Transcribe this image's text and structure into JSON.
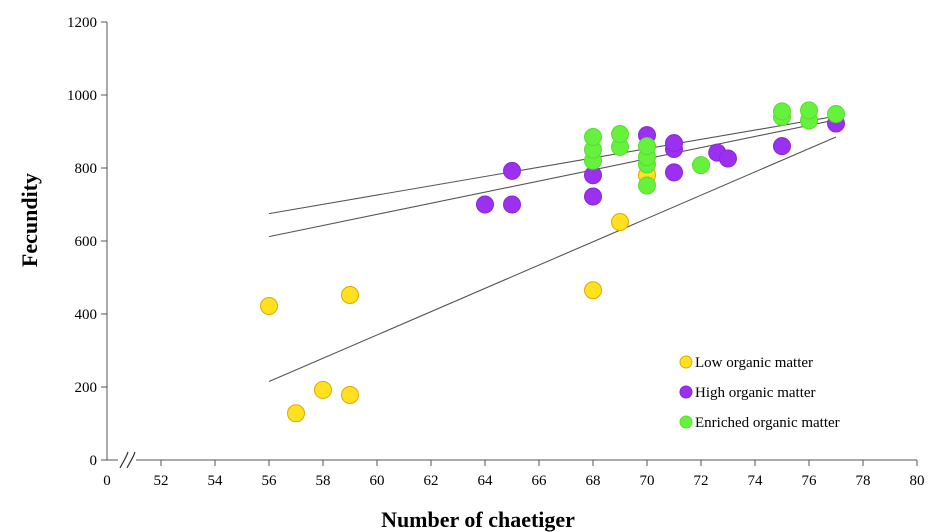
{
  "chart_data": {
    "type": "scatter",
    "xlabel": "Number of chaetiger",
    "ylabel": "Fecundity",
    "x_ticks": [
      "0",
      "52",
      "54",
      "56",
      "58",
      "60",
      "62",
      "64",
      "66",
      "68",
      "70",
      "72",
      "74",
      "76",
      "78",
      "80"
    ],
    "y_ticks": [
      "0",
      "200",
      "400",
      "600",
      "800",
      "1000",
      "1200"
    ],
    "xlim": [
      50,
      80
    ],
    "ylim": [
      0,
      1200
    ],
    "axis_break": "x",
    "grid": false,
    "legend_position": "bottom-right",
    "series": [
      {
        "name": "Low organic matter",
        "color": "#FFE11F",
        "edge_color": "#E0A800",
        "points": [
          [
            56,
            422
          ],
          [
            57,
            128
          ],
          [
            58,
            192
          ],
          [
            59,
            178
          ],
          [
            59,
            452
          ],
          [
            68,
            465
          ],
          [
            69,
            652
          ],
          [
            70,
            780
          ]
        ],
        "trendline": [
          [
            56,
            215
          ],
          [
            77,
            885
          ]
        ]
      },
      {
        "name": "High organic matter",
        "color": "#9B30F0",
        "edge_color": "#8A28D8",
        "points": [
          [
            64,
            700
          ],
          [
            65,
            700
          ],
          [
            65,
            792
          ],
          [
            68,
            722
          ],
          [
            68,
            780
          ],
          [
            70,
            890
          ],
          [
            71,
            788
          ],
          [
            71,
            852
          ],
          [
            71,
            868
          ],
          [
            72.6,
            842
          ],
          [
            73,
            826
          ],
          [
            75,
            860
          ],
          [
            77,
            922
          ]
        ],
        "trendline": [
          [
            56,
            612
          ],
          [
            77,
            932
          ]
        ]
      },
      {
        "name": "Enriched organic matter",
        "color": "#66F23C",
        "edge_color": "#55DD30",
        "points": [
          [
            68,
            820
          ],
          [
            68,
            850
          ],
          [
            68,
            885
          ],
          [
            69,
            858
          ],
          [
            69,
            893
          ],
          [
            70,
            752
          ],
          [
            70,
            810
          ],
          [
            70,
            830
          ],
          [
            70,
            860
          ],
          [
            72,
            808
          ],
          [
            75,
            940
          ],
          [
            75,
            955
          ],
          [
            76,
            930
          ],
          [
            76,
            958
          ],
          [
            77,
            948
          ]
        ],
        "trendline": [
          [
            56,
            675
          ],
          [
            77,
            942
          ]
        ]
      }
    ]
  }
}
